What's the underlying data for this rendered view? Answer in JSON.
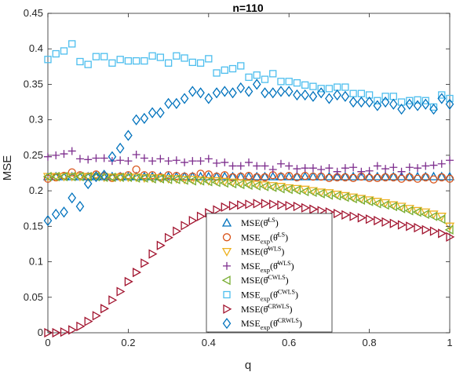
{
  "chart_data": {
    "type": "scatter",
    "title": "n=110",
    "xlabel": "q",
    "ylabel": "MSE",
    "xlim": [
      0,
      1
    ],
    "ylim": [
      0,
      0.45
    ],
    "xticks": [
      "0",
      "0.2",
      "0.4",
      "0.6",
      "0.8",
      "1"
    ],
    "yticks": [
      "0",
      "0.05",
      "0.1",
      "0.15",
      "0.2",
      "0.25",
      "0.3",
      "0.35",
      "0.4",
      "0.45"
    ],
    "grid": false,
    "legend_position": "bottom-center",
    "x": [
      0,
      0.02,
      0.04,
      0.06,
      0.08,
      0.1,
      0.12,
      0.14,
      0.16,
      0.18,
      0.2,
      0.22,
      0.24,
      0.26,
      0.28,
      0.3,
      0.32,
      0.34,
      0.36,
      0.38,
      0.4,
      0.42,
      0.44,
      0.46,
      0.48,
      0.5,
      0.52,
      0.54,
      0.56,
      0.58,
      0.6,
      0.62,
      0.64,
      0.66,
      0.68,
      0.7,
      0.72,
      0.74,
      0.76,
      0.78,
      0.8,
      0.82,
      0.84,
      0.86,
      0.88,
      0.9,
      0.92,
      0.94,
      0.96,
      0.98,
      1.0
    ],
    "series": [
      {
        "name": "MSE(θ̂^LS)",
        "color": "#0072BD",
        "marker": "triangle-up",
        "values": [
          0.22,
          0.22,
          0.22,
          0.22,
          0.22,
          0.22,
          0.22,
          0.22,
          0.22,
          0.22,
          0.22,
          0.22,
          0.22,
          0.22,
          0.22,
          0.22,
          0.22,
          0.22,
          0.22,
          0.22,
          0.22,
          0.22,
          0.22,
          0.22,
          0.22,
          0.22,
          0.22,
          0.22,
          0.22,
          0.22,
          0.22,
          0.22,
          0.22,
          0.22,
          0.22,
          0.22,
          0.22,
          0.22,
          0.22,
          0.22,
          0.22,
          0.22,
          0.22,
          0.22,
          0.22,
          0.22,
          0.22,
          0.22,
          0.22,
          0.22,
          0.22
        ]
      },
      {
        "name": "MSE_exp(θ̂^LS)",
        "color": "#D95319",
        "marker": "circle",
        "values": [
          0.217,
          0.219,
          0.221,
          0.226,
          0.222,
          0.22,
          0.223,
          0.221,
          0.218,
          0.22,
          0.222,
          0.23,
          0.222,
          0.222,
          0.219,
          0.222,
          0.221,
          0.22,
          0.22,
          0.224,
          0.223,
          0.22,
          0.222,
          0.219,
          0.22,
          0.221,
          0.219,
          0.219,
          0.222,
          0.22,
          0.221,
          0.219,
          0.221,
          0.22,
          0.22,
          0.218,
          0.219,
          0.219,
          0.218,
          0.22,
          0.218,
          0.218,
          0.219,
          0.219,
          0.217,
          0.219,
          0.217,
          0.219,
          0.216,
          0.219,
          0.217
        ]
      },
      {
        "name": "MSE(θ̂^WLS)",
        "color": "#EDB120",
        "marker": "triangle-down",
        "values": [
          0.22,
          0.22,
          0.22,
          0.22,
          0.22,
          0.22,
          0.22,
          0.219,
          0.219,
          0.219,
          0.219,
          0.219,
          0.218,
          0.218,
          0.218,
          0.217,
          0.217,
          0.216,
          0.216,
          0.215,
          0.214,
          0.214,
          0.213,
          0.212,
          0.211,
          0.21,
          0.209,
          0.208,
          0.207,
          0.206,
          0.204,
          0.203,
          0.202,
          0.2,
          0.198,
          0.197,
          0.195,
          0.193,
          0.191,
          0.189,
          0.187,
          0.185,
          0.183,
          0.18,
          0.178,
          0.175,
          0.172,
          0.17,
          0.167,
          0.164,
          0.15
        ]
      },
      {
        "name": "MSE_exp(θ̂^WLS)",
        "color": "#7E2F8E",
        "marker": "plus",
        "values": [
          0.248,
          0.25,
          0.252,
          0.256,
          0.245,
          0.244,
          0.246,
          0.246,
          0.242,
          0.243,
          0.242,
          0.251,
          0.246,
          0.242,
          0.245,
          0.242,
          0.243,
          0.24,
          0.242,
          0.242,
          0.245,
          0.239,
          0.24,
          0.235,
          0.235,
          0.24,
          0.235,
          0.235,
          0.23,
          0.238,
          0.235,
          0.231,
          0.232,
          0.232,
          0.23,
          0.232,
          0.227,
          0.232,
          0.233,
          0.227,
          0.228,
          0.235,
          0.231,
          0.233,
          0.227,
          0.233,
          0.232,
          0.235,
          0.236,
          0.238,
          0.243
        ]
      },
      {
        "name": "MSE(θ̂^CWLS)",
        "color": "#77AC30",
        "marker": "triangle-left",
        "values": [
          0.22,
          0.22,
          0.22,
          0.22,
          0.22,
          0.22,
          0.22,
          0.219,
          0.219,
          0.219,
          0.219,
          0.218,
          0.218,
          0.217,
          0.217,
          0.216,
          0.216,
          0.215,
          0.214,
          0.214,
          0.213,
          0.212,
          0.211,
          0.21,
          0.209,
          0.208,
          0.207,
          0.206,
          0.205,
          0.203,
          0.202,
          0.201,
          0.199,
          0.198,
          0.196,
          0.194,
          0.193,
          0.191,
          0.189,
          0.187,
          0.185,
          0.182,
          0.18,
          0.178,
          0.175,
          0.172,
          0.17,
          0.167,
          0.164,
          0.16,
          0.145
        ]
      },
      {
        "name": "MSE_exp(θ̂^CWLS)",
        "color": "#4DBEEE",
        "marker": "square",
        "values": [
          0.385,
          0.393,
          0.397,
          0.407,
          0.382,
          0.378,
          0.389,
          0.389,
          0.38,
          0.385,
          0.383,
          0.383,
          0.383,
          0.39,
          0.388,
          0.38,
          0.39,
          0.387,
          0.381,
          0.38,
          0.386,
          0.366,
          0.37,
          0.372,
          0.376,
          0.36,
          0.363,
          0.357,
          0.365,
          0.354,
          0.354,
          0.352,
          0.349,
          0.347,
          0.344,
          0.344,
          0.346,
          0.346,
          0.337,
          0.337,
          0.335,
          0.327,
          0.333,
          0.333,
          0.325,
          0.327,
          0.328,
          0.327,
          0.318,
          0.335,
          0.33
        ]
      },
      {
        "name": "MSE(θ̂^CRWLS)",
        "color": "#A2142F",
        "marker": "triangle-right",
        "values": [
          0,
          0,
          0.001,
          0.004,
          0.009,
          0.016,
          0.024,
          0.034,
          0.046,
          0.058,
          0.072,
          0.085,
          0.098,
          0.111,
          0.123,
          0.134,
          0.143,
          0.151,
          0.158,
          0.164,
          0.169,
          0.173,
          0.177,
          0.179,
          0.18,
          0.181,
          0.182,
          0.182,
          0.181,
          0.18,
          0.179,
          0.178,
          0.176,
          0.174,
          0.172,
          0.17,
          0.168,
          0.166,
          0.164,
          0.162,
          0.16,
          0.158,
          0.156,
          0.154,
          0.152,
          0.15,
          0.148,
          0.145,
          0.143,
          0.14,
          0.135
        ]
      },
      {
        "name": "MSE_exp(θ̂^CRWLS)",
        "color": "#0072BD",
        "marker": "diamond",
        "values": [
          0.158,
          0.167,
          0.17,
          0.19,
          0.178,
          0.21,
          0.22,
          0.222,
          0.248,
          0.26,
          0.278,
          0.3,
          0.302,
          0.31,
          0.31,
          0.323,
          0.323,
          0.33,
          0.34,
          0.338,
          0.33,
          0.338,
          0.34,
          0.338,
          0.345,
          0.34,
          0.35,
          0.338,
          0.338,
          0.34,
          0.34,
          0.335,
          0.335,
          0.333,
          0.338,
          0.33,
          0.335,
          0.333,
          0.325,
          0.325,
          0.325,
          0.32,
          0.325,
          0.322,
          0.315,
          0.322,
          0.32,
          0.322,
          0.315,
          0.33,
          0.322
        ]
      }
    ],
    "legend": [
      {
        "base": "MSE(",
        "sub": "",
        "theta": "θ̂",
        "sup": "LS",
        "close": ")"
      },
      {
        "base": "MSE",
        "sub": "exp",
        "theta": "(θ̂",
        "sup": "LS",
        "close": ")"
      },
      {
        "base": "MSE(",
        "sub": "",
        "theta": "θ̂",
        "sup": "WLS",
        "close": ")"
      },
      {
        "base": "MSE",
        "sub": "exp",
        "theta": "(θ̂",
        "sup": "WLS",
        "close": ")"
      },
      {
        "base": "MSE(",
        "sub": "",
        "theta": "θ̂",
        "sup": "CWLS",
        "close": ")"
      },
      {
        "base": "MSE",
        "sub": "exp",
        "theta": "(θ̂",
        "sup": "CWLS",
        "close": ")"
      },
      {
        "base": "MSE(",
        "sub": "",
        "theta": "θ̂",
        "sup": "CRWLS",
        "close": ")"
      },
      {
        "base": "MSE",
        "sub": "exp",
        "theta": "(θ̂",
        "sup": "CRWLS",
        "close": ")"
      }
    ]
  }
}
